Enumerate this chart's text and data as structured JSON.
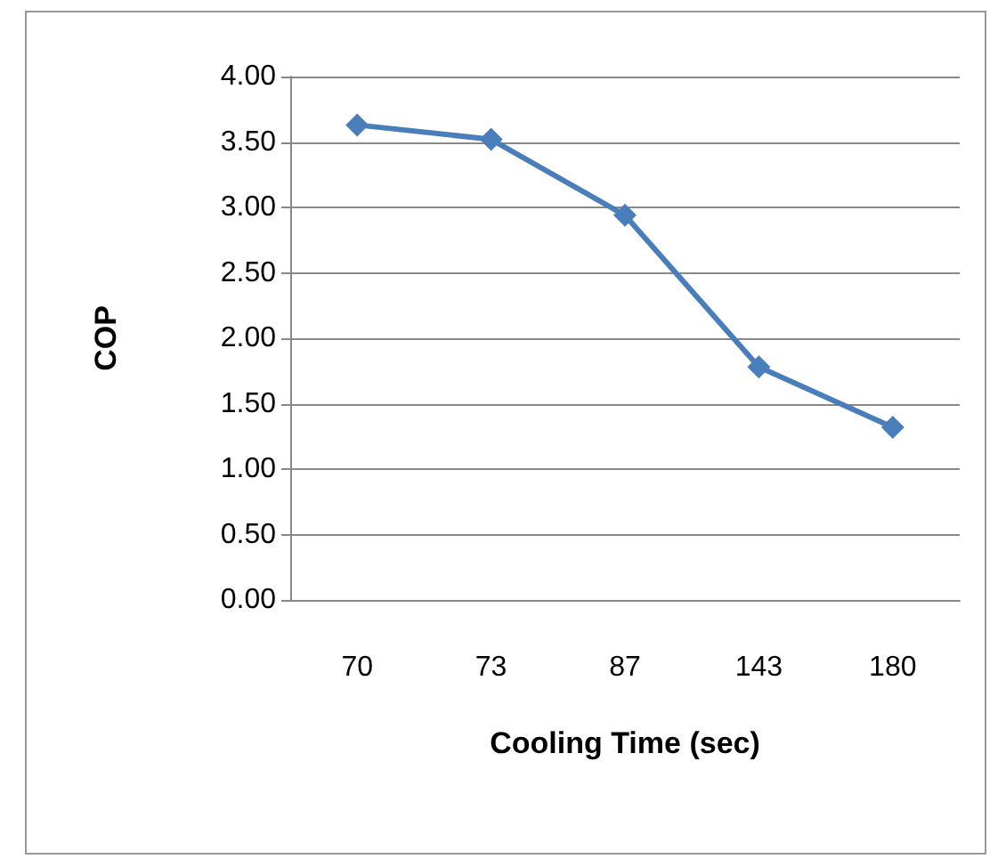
{
  "chart_data": {
    "type": "line",
    "xlabel": "Cooling Time (sec)",
    "ylabel": "COP",
    "categories": [
      "70",
      "73",
      "87",
      "143",
      "180"
    ],
    "series": [
      {
        "color": "#4a7ebb",
        "values": [
          3.63,
          3.52,
          2.94,
          1.78,
          1.32
        ]
      }
    ],
    "ylim": [
      0,
      4
    ],
    "yticks": [
      {
        "value": 0,
        "label": "0.00"
      },
      {
        "value": 0.5,
        "label": "0.50"
      },
      {
        "value": 1,
        "label": "1.00"
      },
      {
        "value": 1.5,
        "label": "1.50"
      },
      {
        "value": 2,
        "label": "2.00"
      },
      {
        "value": 2.5,
        "label": "2.50"
      },
      {
        "value": 3,
        "label": "3.00"
      },
      {
        "value": 3.5,
        "label": "3.50"
      },
      {
        "value": 4,
        "label": "4.00"
      }
    ],
    "grid": "y",
    "marker": "diamond",
    "line_style": "solid"
  }
}
